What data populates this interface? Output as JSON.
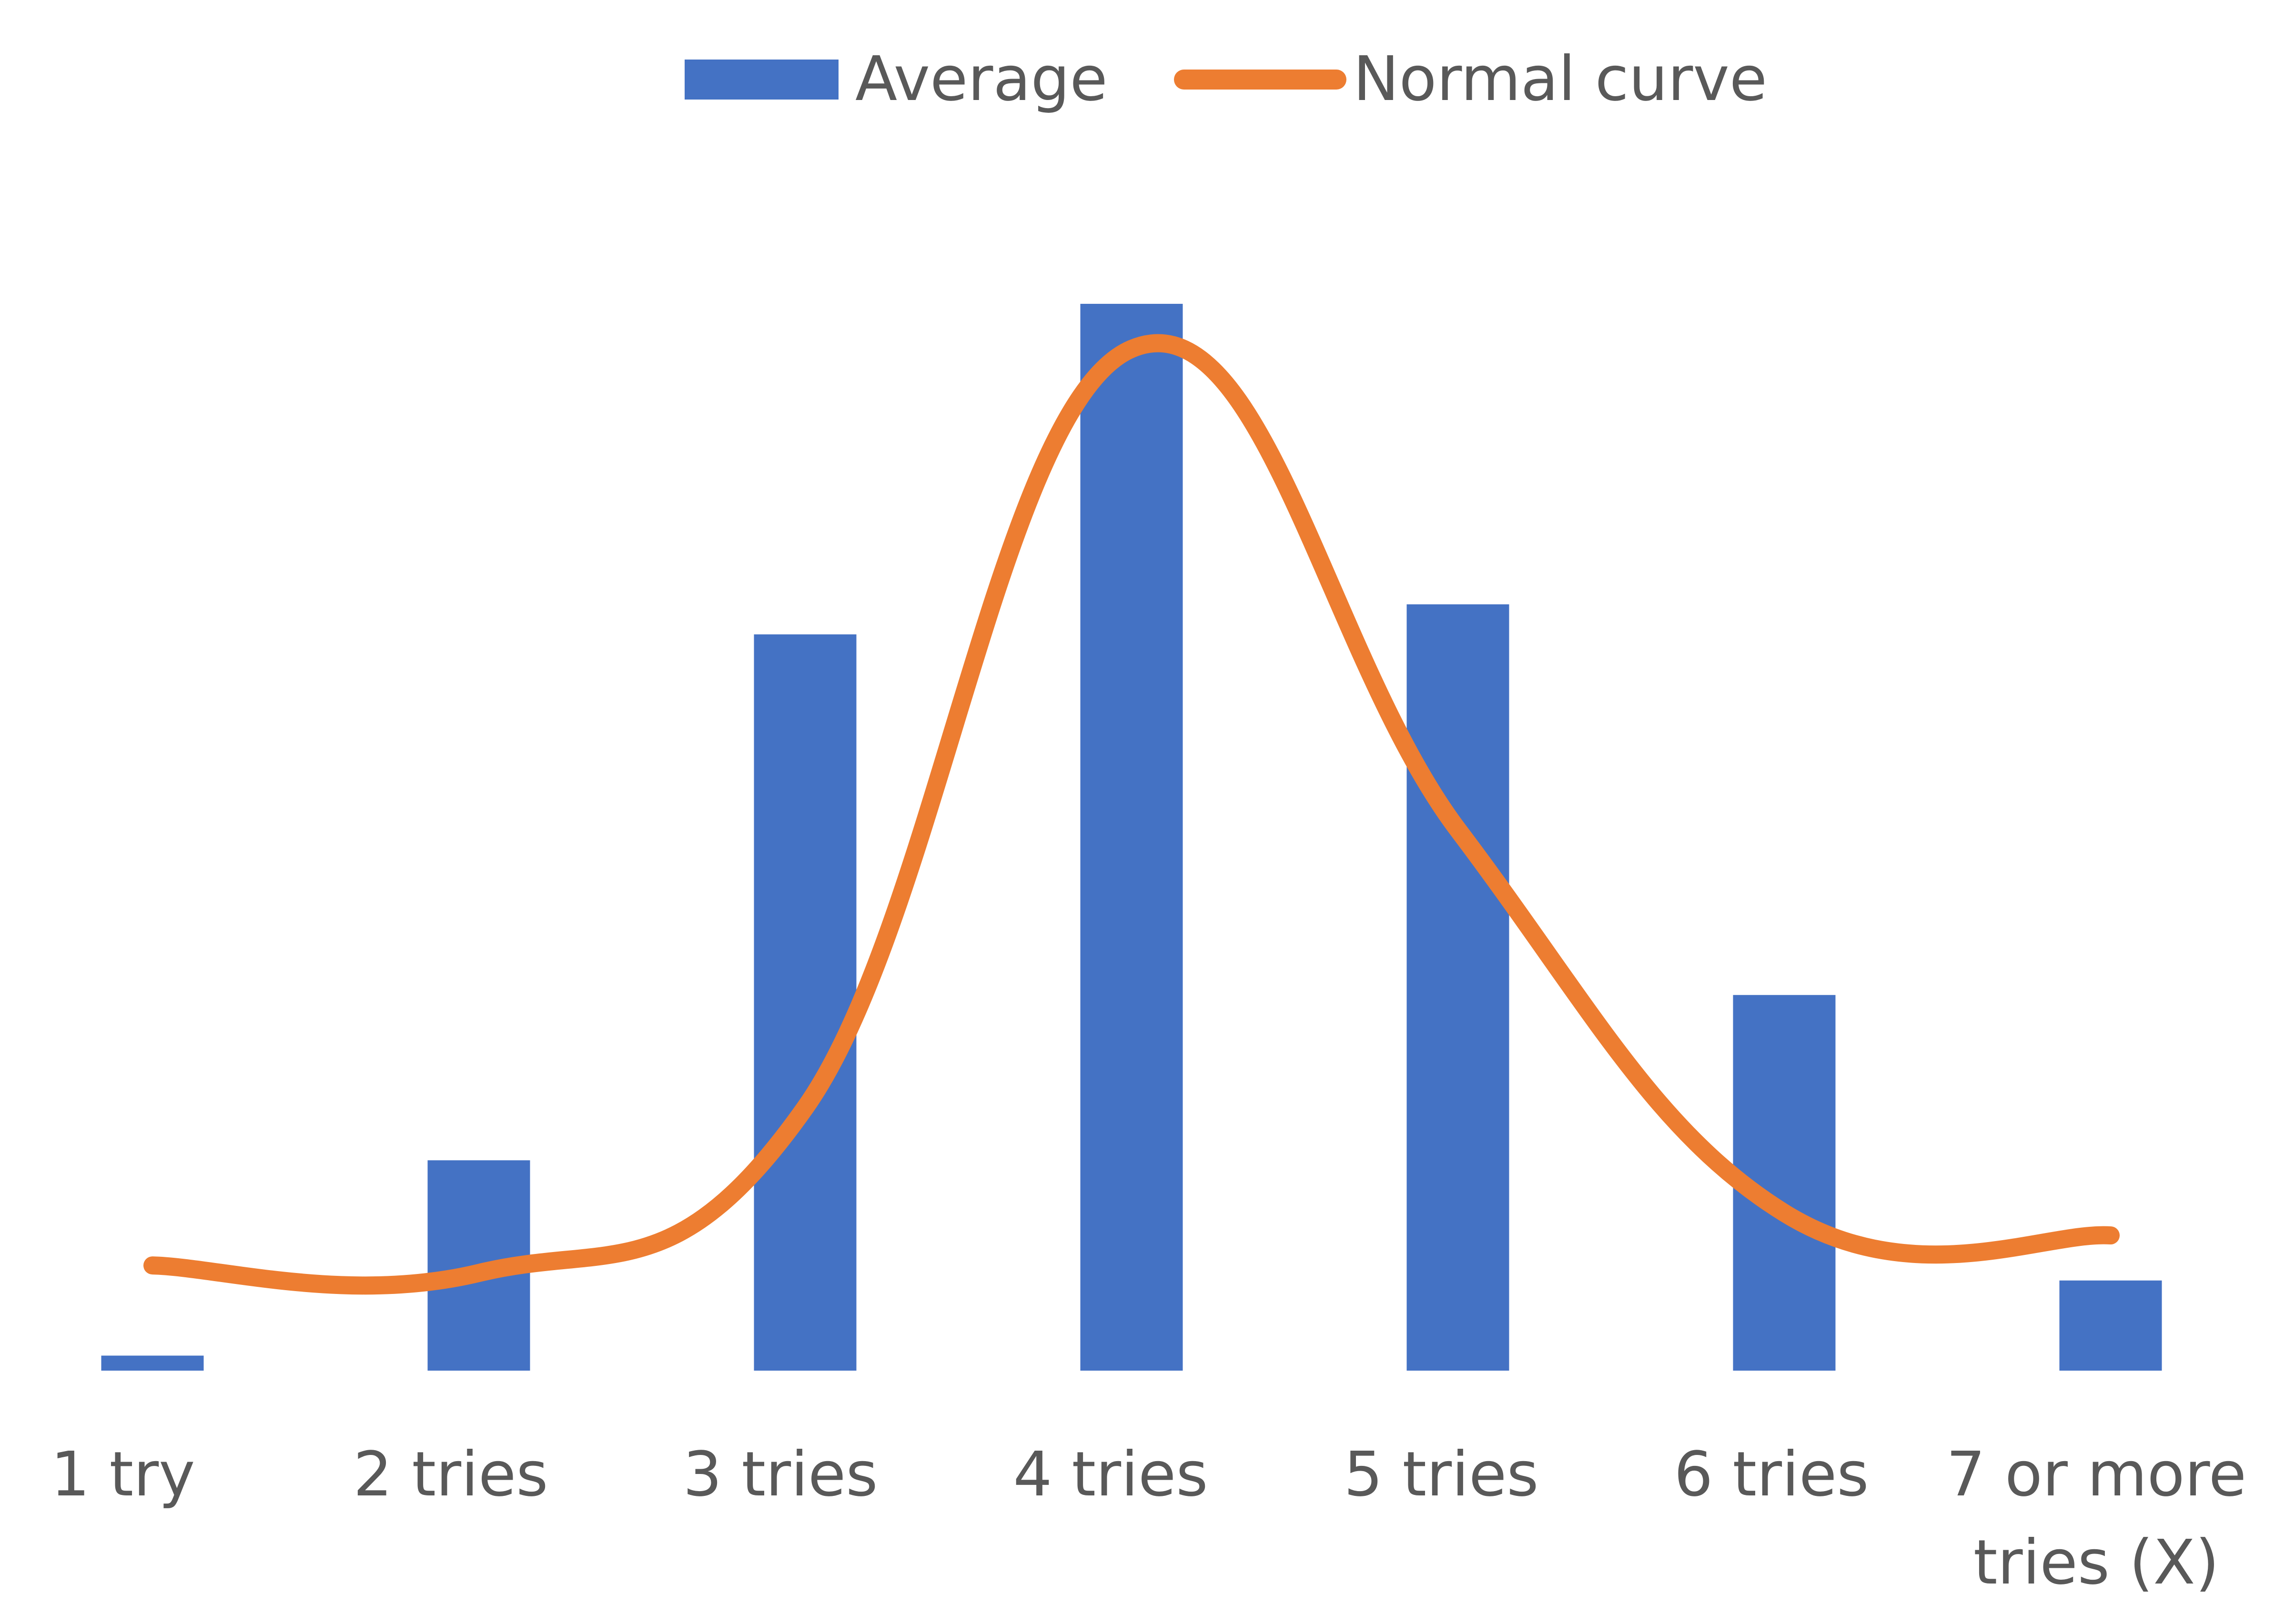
{
  "chart_data": {
    "type": "bar",
    "categories": [
      "1 try",
      "2 tries",
      "3 tries",
      "4 tries",
      "5 tries",
      "6 tries",
      "7 or more tries (X)"
    ],
    "category_lines": [
      [
        "1 try"
      ],
      [
        "2 tries"
      ],
      [
        "3 tries"
      ],
      [
        "4 tries"
      ],
      [
        "5 tries"
      ],
      [
        "6 tries"
      ],
      [
        "7 or more",
        "tries (X)"
      ]
    ],
    "series": [
      {
        "name": "Average",
        "kind": "bar",
        "color": "#4472C4",
        "values": [
          1,
          14,
          49,
          71,
          51,
          25,
          6
        ]
      },
      {
        "name": "Normal curve",
        "kind": "line",
        "smooth": true,
        "color": "#ED7D31",
        "values": [
          7,
          6.5,
          17.5,
          68,
          36,
          10.5,
          9
        ]
      }
    ],
    "ylim": [
      0,
      80
    ],
    "y_axis_visible": false,
    "grid": false,
    "legend_position": "top-center"
  }
}
